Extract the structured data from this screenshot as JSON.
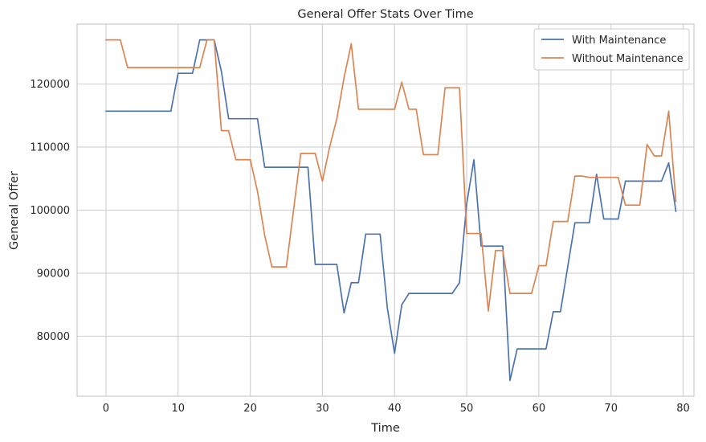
{
  "chart_data": {
    "type": "line",
    "title": "General Offer Stats Over Time",
    "xlabel": "Time",
    "ylabel": "General Offer",
    "xlim": [
      -4,
      81.5
    ],
    "ylim": [
      70500,
      129500
    ],
    "xticks": [
      0,
      10,
      20,
      30,
      40,
      50,
      60,
      70,
      80
    ],
    "yticks": [
      80000,
      90000,
      100000,
      110000,
      120000
    ],
    "grid": true,
    "legend_position": "top-right",
    "x": [
      0,
      1,
      2,
      3,
      4,
      5,
      6,
      7,
      8,
      9,
      10,
      11,
      12,
      13,
      14,
      15,
      16,
      17,
      18,
      19,
      20,
      21,
      22,
      23,
      24,
      25,
      26,
      27,
      28,
      29,
      30,
      31,
      32,
      33,
      34,
      35,
      36,
      37,
      38,
      39,
      40,
      41,
      42,
      43,
      44,
      45,
      46,
      47,
      48,
      49,
      50,
      51,
      52,
      53,
      54,
      55,
      56,
      57,
      58,
      59,
      60,
      61,
      62,
      63,
      64,
      65,
      66,
      67,
      68,
      69,
      70,
      71,
      72,
      73,
      74,
      75,
      76,
      77,
      78,
      79
    ],
    "series": [
      {
        "name": "With Maintenance",
        "color": "#4c72b0",
        "values": [
          115700,
          115700,
          115700,
          115700,
          115700,
          115700,
          115700,
          115700,
          115700,
          115700,
          121700,
          121700,
          121700,
          127000,
          127000,
          127000,
          122000,
          114500,
          114500,
          114500,
          114500,
          114500,
          106800,
          106800,
          106800,
          106800,
          106800,
          106800,
          106800,
          91400,
          91400,
          91400,
          91400,
          83700,
          88500,
          88500,
          96200,
          96200,
          96200,
          84500,
          77300,
          85000,
          86800,
          86800,
          86800,
          86800,
          86800,
          86800,
          86800,
          88500,
          101000,
          108000,
          94300,
          94300,
          94300,
          94300,
          73000,
          78000,
          78000,
          78000,
          78000,
          78000,
          83900,
          83900,
          91000,
          98000,
          98000,
          98000,
          105700,
          98600,
          98600,
          98600,
          104600,
          104600,
          104600,
          104600,
          104600,
          104600,
          107500,
          99800
        ]
      },
      {
        "name": "Without Maintenance",
        "color": "#dd8452",
        "values": [
          127000,
          127000,
          127000,
          122600,
          122600,
          122600,
          122600,
          122600,
          122600,
          122600,
          122600,
          122600,
          122600,
          122600,
          127000,
          127000,
          112600,
          112600,
          108000,
          108000,
          108000,
          103000,
          96000,
          91000,
          91000,
          91000,
          100000,
          109000,
          109000,
          109000,
          104600,
          110000,
          114500,
          121000,
          126400,
          116000,
          116000,
          116000,
          116000,
          116000,
          116000,
          120300,
          116000,
          116000,
          108800,
          108800,
          108800,
          119400,
          119400,
          119400,
          96300,
          96300,
          96300,
          84000,
          93600,
          93600,
          86800,
          86800,
          86800,
          86800,
          91200,
          91200,
          98200,
          98200,
          98200,
          105400,
          105400,
          105200,
          105200,
          105200,
          105200,
          105200,
          100800,
          100800,
          100800,
          110400,
          108600,
          108600,
          115700,
          101400
        ]
      }
    ]
  }
}
